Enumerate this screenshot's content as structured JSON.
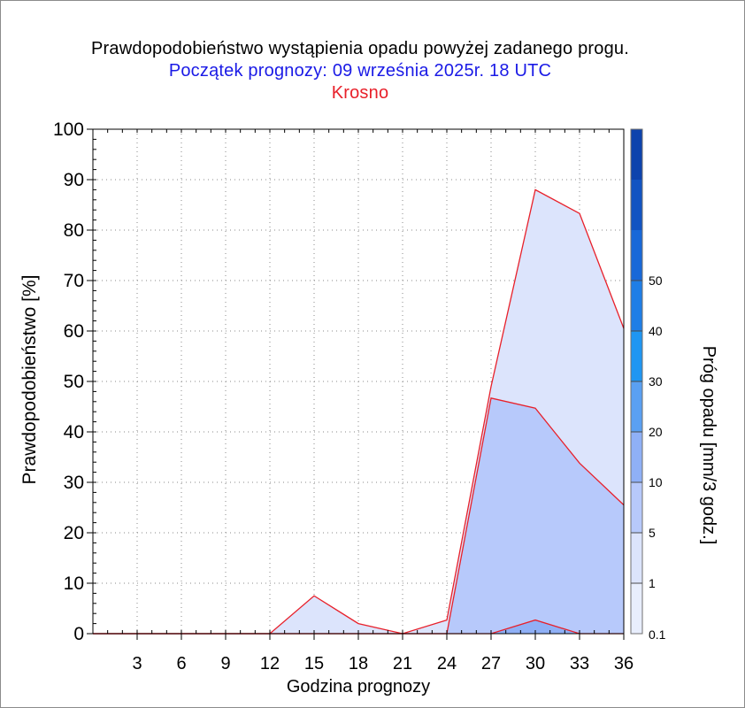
{
  "header": {
    "title": "Prawdopodobieństwo wystąpienia opadu powyżej zadanego progu.",
    "subtitle": "Początek prognozy: 09 września 2025r. 18 UTC",
    "location": "Krosno"
  },
  "colors": {
    "title": "#000000",
    "subtitle": "#1a1ae6",
    "location": "#e8202a",
    "series_outline": "#e8202a",
    "grid": "#8a8a8a"
  },
  "chart_data": {
    "type": "area",
    "title": "Prawdopodobieństwo wystąpienia opadu powyżej zadanego progu.",
    "xlabel": "Godzina prognozy",
    "ylabel": "Prawdopodobieństwo [%]",
    "xlim": [
      0,
      36
    ],
    "ylim": [
      0,
      100
    ],
    "x_ticks": [
      3,
      6,
      9,
      12,
      15,
      18,
      21,
      24,
      27,
      30,
      33,
      36
    ],
    "y_ticks": [
      0,
      10,
      20,
      30,
      40,
      50,
      60,
      70,
      80,
      90,
      100
    ],
    "grid": true,
    "x": [
      0,
      3,
      6,
      9,
      12,
      15,
      18,
      21,
      24,
      27,
      30,
      33,
      36
    ],
    "series": [
      {
        "threshold": 0.1,
        "color": "#dce4fc",
        "values": [
          0,
          0,
          0,
          0,
          0,
          7.5,
          2,
          0,
          2.7,
          49,
          88,
          83.3,
          60.5
        ]
      },
      {
        "threshold": 1,
        "color": "#b7c9fb",
        "values": [
          0,
          0,
          0,
          0,
          0,
          0,
          0,
          0,
          0,
          46.7,
          44.7,
          33.8,
          25.5
        ]
      },
      {
        "threshold": 5,
        "color": "#8fb0f6",
        "values": [
          0,
          0,
          0,
          0,
          0,
          0,
          0,
          0,
          0,
          0,
          2.7,
          0,
          0
        ]
      }
    ],
    "colorbar": {
      "label": "Próg opadu [mm/3 godz.]",
      "tick_labels": [
        "0.1",
        "1",
        "5",
        "10",
        "20",
        "30",
        "40",
        "50"
      ],
      "colors": [
        "#e8eefd",
        "#dce4fc",
        "#b7c9fb",
        "#8fb0f6",
        "#5aa0f2",
        "#1f96f2",
        "#1e7ee6",
        "#1868d8",
        "#1254c2",
        "#0d43ad"
      ]
    }
  }
}
